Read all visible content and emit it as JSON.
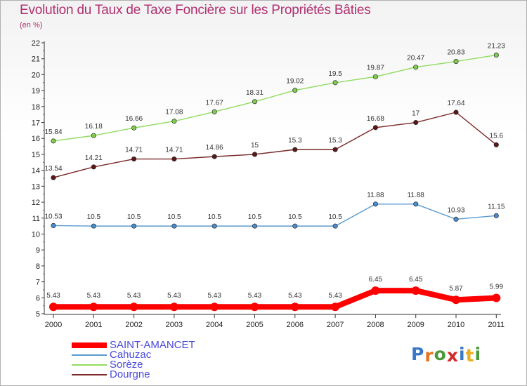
{
  "chart_data": {
    "type": "line",
    "title": "Evolution du Taux de Taxe Foncière sur les Propriétés Bâties",
    "subtitle": "(en %)",
    "categories": [
      "2000",
      "2001",
      "2002",
      "2003",
      "2004",
      "2005",
      "2006",
      "2007",
      "2008",
      "2009",
      "2010",
      "2011"
    ],
    "ylim": [
      5,
      22
    ],
    "yticks": [
      5,
      6,
      7,
      8,
      9,
      10,
      11,
      12,
      13,
      14,
      15,
      16,
      17,
      18,
      19,
      20,
      21,
      22
    ],
    "grid": false,
    "legend_position": "bottom-left",
    "series": [
      {
        "name": "SAINT-AMANCET",
        "color": "#ff0000",
        "marker": "#ff0000",
        "values": [
          5.43,
          5.43,
          5.43,
          5.43,
          5.43,
          5.43,
          5.43,
          5.43,
          6.45,
          6.45,
          5.87,
          5.99
        ],
        "labels": [
          "5.43",
          "5.43",
          "5.43",
          "5.43",
          "5.43",
          "5.43",
          "5.43",
          "5.43",
          "6.45",
          "6.45",
          "5.87",
          "5.99"
        ]
      },
      {
        "name": "Cahuzac",
        "color": "#5b9bd0",
        "marker": "#4a8ccc",
        "values": [
          10.53,
          10.5,
          10.5,
          10.5,
          10.5,
          10.5,
          10.5,
          10.5,
          11.88,
          11.88,
          10.93,
          11.15
        ],
        "labels": [
          "10.53",
          "10.5",
          "10.5",
          "10.5",
          "10.5",
          "10.5",
          "10.5",
          "10.5",
          "11.88",
          "11.88",
          "10.93",
          "11.15"
        ]
      },
      {
        "name": "Sorèze",
        "color": "#90dc60",
        "marker": "#80cc50",
        "values": [
          15.84,
          16.18,
          16.66,
          17.08,
          17.67,
          18.31,
          19.02,
          19.5,
          19.87,
          20.47,
          20.83,
          21.23
        ],
        "labels": [
          "15.84",
          "16.18",
          "16.66",
          "17.08",
          "17.67",
          "18.31",
          "19.02",
          "19.5",
          "19.87",
          "20.47",
          "20.83",
          "21.23"
        ]
      },
      {
        "name": "Dourgne",
        "color": "#7a2828",
        "marker": "#5a1818",
        "values": [
          13.54,
          14.21,
          14.71,
          14.71,
          14.86,
          15,
          15.3,
          15.3,
          16.68,
          17,
          17.64,
          15.6
        ],
        "labels": [
          "13.54",
          "14.21",
          "14.71",
          "14.71",
          "14.86",
          "15",
          "15.3",
          "15.3",
          "16.68",
          "17",
          "17.64",
          "15.6"
        ]
      }
    ]
  },
  "logo": {
    "text": "Proxiti",
    "colors": [
      "#3a78c8",
      "#e8731f",
      "#4a9a3a",
      "#d02a2a",
      "#3a78c8",
      "#e8b020",
      "#4a9a3a"
    ]
  }
}
